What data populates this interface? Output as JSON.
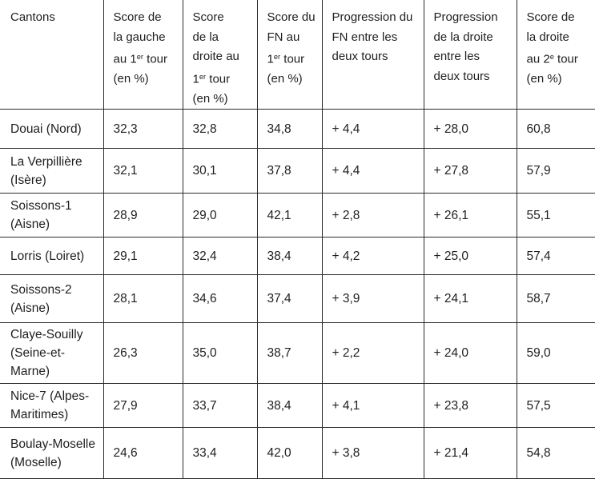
{
  "table": {
    "columns": [
      {
        "id": "cantons",
        "label_lines": [
          [
            {
              "t": "Cantons"
            }
          ]
        ]
      },
      {
        "id": "score-gauche-tour1",
        "label_lines": [
          [
            {
              "t": "Score de"
            }
          ],
          [
            {
              "t": "la gauche"
            }
          ],
          [
            {
              "t": "au 1"
            },
            {
              "t": "er",
              "sup": true
            },
            {
              "t": " tour"
            }
          ],
          [
            {
              "t": "(en %)"
            }
          ]
        ]
      },
      {
        "id": "score-droite-tour1",
        "label_lines": [
          [
            {
              "t": "Score"
            }
          ],
          [
            {
              "t": "de la"
            }
          ],
          [
            {
              "t": "droite au"
            }
          ],
          [
            {
              "t": "1"
            },
            {
              "t": "er",
              "sup": true
            },
            {
              "t": " tour"
            }
          ],
          [
            {
              "t": "(en %)"
            }
          ]
        ]
      },
      {
        "id": "score-fn-tour1",
        "label_lines": [
          [
            {
              "t": "Score du"
            }
          ],
          [
            {
              "t": "FN au"
            }
          ],
          [
            {
              "t": "1"
            },
            {
              "t": "er",
              "sup": true
            },
            {
              "t": " tour"
            }
          ],
          [
            {
              "t": "(en %)"
            }
          ]
        ]
      },
      {
        "id": "progression-fn",
        "label_lines": [
          [
            {
              "t": "Progression du"
            }
          ],
          [
            {
              "t": "FN entre les"
            }
          ],
          [
            {
              "t": "deux tours"
            }
          ]
        ]
      },
      {
        "id": "progression-droite",
        "label_lines": [
          [
            {
              "t": "Progression"
            }
          ],
          [
            {
              "t": "de la droite"
            }
          ],
          [
            {
              "t": "entre les"
            }
          ],
          [
            {
              "t": "deux tours"
            }
          ]
        ]
      },
      {
        "id": "score-droite-tour2",
        "label_lines": [
          [
            {
              "t": "Score de"
            }
          ],
          [
            {
              "t": "la droite"
            }
          ],
          [
            {
              "t": "au 2"
            },
            {
              "t": "e",
              "sup": true
            },
            {
              "t": " tour"
            }
          ],
          [
            {
              "t": "(en %)"
            }
          ]
        ]
      }
    ],
    "rows": [
      {
        "canton": "Douai (Nord)",
        "cells": [
          "32,3",
          "32,8",
          "34,8",
          "+ 4,4",
          "+ 28,0",
          "60,8"
        ]
      },
      {
        "canton": "La Verpillière (Isère)",
        "cells": [
          "32,1",
          "30,1",
          "37,8",
          "+ 4,4",
          "+ 27,8",
          "57,9"
        ]
      },
      {
        "canton": "Soissons-1 (Aisne)",
        "cells": [
          "28,9",
          "29,0",
          "42,1",
          "+ 2,8",
          "+ 26,1",
          "55,1"
        ]
      },
      {
        "canton": "Lorris (Loiret)",
        "cells": [
          "29,1",
          "32,4",
          "38,4",
          "+ 4,2",
          "+ 25,0",
          "57,4"
        ]
      },
      {
        "canton": "Soissons-2 (Aisne)",
        "cells": [
          "28,1",
          "34,6",
          "37,4",
          "+ 3,9",
          "+ 24,1",
          "58,7"
        ]
      },
      {
        "canton": "Claye-Souilly (Seine-et-Marne)",
        "cells": [
          "26,3",
          "35,0",
          "38,7",
          "+ 2,2",
          "+ 24,0",
          "59,0"
        ]
      },
      {
        "canton": "Nice-7 (Alpes-Maritimes)",
        "cells": [
          "27,9",
          "33,7",
          "38,4",
          "+ 4,1",
          "+ 23,8",
          "57,5"
        ]
      },
      {
        "canton": "Boulay-Moselle (Moselle)",
        "cells": [
          "24,6",
          "33,4",
          "42,0",
          "+ 3,8",
          "+ 21,4",
          "54,8"
        ]
      }
    ]
  },
  "colors": {
    "text": "#1f1f1f",
    "border": "#2b2b2b",
    "background": "#ffffff"
  }
}
